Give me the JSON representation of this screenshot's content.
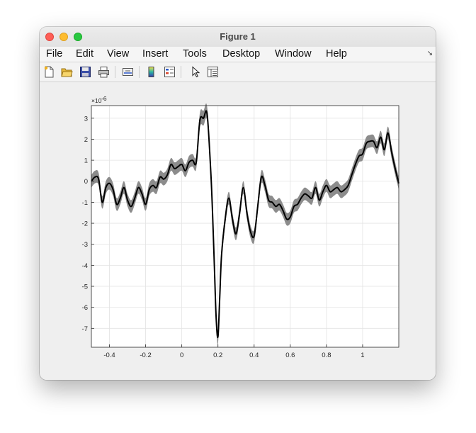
{
  "window": {
    "title": "Figure 1"
  },
  "menu": {
    "items": [
      "File",
      "Edit",
      "View",
      "Insert",
      "Tools",
      "Desktop",
      "Window",
      "Help"
    ]
  },
  "toolbar": {
    "buttons": [
      "new-figure-icon",
      "open-file-icon",
      "save-icon",
      "print-icon",
      "link-plot-icon",
      "insert-colorbar-icon",
      "insert-legend-icon",
      "edit-plot-icon",
      "property-inspector-icon"
    ]
  },
  "chart_data": {
    "type": "line",
    "title": "",
    "xlabel": "",
    "ylabel": "",
    "xlim": [
      -0.5,
      1.2
    ],
    "ylim": [
      -7.9,
      3.6
    ],
    "xticks": [
      -0.4,
      -0.2,
      0,
      0.2,
      0.4,
      0.6,
      0.8,
      1
    ],
    "xtick_labels": [
      "-0.4",
      "-0.2",
      "0",
      "0.2",
      "0.4",
      "0.6",
      "0.8",
      "1"
    ],
    "yticks": [
      3,
      2,
      1,
      0,
      -1,
      -2,
      -3,
      -4,
      -5,
      -6,
      -7
    ],
    "ytick_labels": [
      "3",
      "2",
      "1",
      "0",
      "-1",
      "-2",
      "-3",
      "-4",
      "-5",
      "-6",
      "-7"
    ],
    "y_exponent_label": "×10",
    "y_exponent_power": "-6",
    "grid": true,
    "line_color": "#000000",
    "band_color": "#8c8c8c",
    "series": [
      {
        "x": [
          -0.5,
          -0.48,
          -0.46,
          -0.44,
          -0.42,
          -0.4,
          -0.38,
          -0.36,
          -0.34,
          -0.32,
          -0.3,
          -0.28,
          -0.26,
          -0.24,
          -0.22,
          -0.2,
          -0.18,
          -0.16,
          -0.14,
          -0.12,
          -0.1,
          -0.08,
          -0.06,
          -0.04,
          -0.02,
          0,
          0.02,
          0.04,
          0.06,
          0.08,
          0.1,
          0.12,
          0.14,
          0.16,
          0.17,
          0.18,
          0.19,
          0.2,
          0.21,
          0.22,
          0.24,
          0.26,
          0.28,
          0.3,
          0.32,
          0.34,
          0.36,
          0.38,
          0.4,
          0.42,
          0.44,
          0.46,
          0.48,
          0.5,
          0.52,
          0.54,
          0.56,
          0.58,
          0.6,
          0.62,
          0.64,
          0.66,
          0.68,
          0.7,
          0.72,
          0.74,
          0.76,
          0.78,
          0.8,
          0.82,
          0.84,
          0.86,
          0.88,
          0.9,
          0.92,
          0.94,
          0.96,
          0.98,
          1.0,
          1.02,
          1.04,
          1.06,
          1.08,
          1.1,
          1.12,
          1.14,
          1.16,
          1.18,
          1.2
        ],
        "y": [
          0.0,
          0.2,
          0.1,
          -1.0,
          -0.3,
          -0.1,
          -0.4,
          -1.1,
          -0.8,
          -0.3,
          -0.9,
          -1.2,
          -0.8,
          -0.3,
          -0.6,
          -1.1,
          -0.4,
          -0.2,
          -0.3,
          0.2,
          0.1,
          0.3,
          0.8,
          0.6,
          0.7,
          0.8,
          0.5,
          0.9,
          1.0,
          0.9,
          2.9,
          3.0,
          3.2,
          0.5,
          -1.5,
          -4.0,
          -6.5,
          -7.4,
          -5.5,
          -3.5,
          -1.8,
          -0.8,
          -1.8,
          -2.5,
          -1.5,
          -0.3,
          -1.5,
          -2.4,
          -2.6,
          -1.2,
          0.2,
          -0.2,
          -0.9,
          -1.0,
          -1.2,
          -1.1,
          -1.4,
          -1.8,
          -1.7,
          -1.2,
          -1.1,
          -0.8,
          -0.6,
          -0.7,
          -0.8,
          -0.3,
          -0.9,
          -0.5,
          -0.2,
          -0.5,
          -0.4,
          -0.3,
          -0.5,
          -0.4,
          -0.2,
          0.3,
          0.8,
          1.2,
          1.3,
          1.8,
          1.9,
          1.9,
          1.6,
          2.1,
          1.5,
          2.3,
          1.4,
          0.6,
          -0.1
        ]
      }
    ],
    "band_halfwidth": [
      0.3,
      0.3,
      0.3,
      0.3,
      0.3,
      0.3,
      0.3,
      0.3,
      0.3,
      0.3,
      0.3,
      0.3,
      0.3,
      0.3,
      0.3,
      0.3,
      0.3,
      0.3,
      0.3,
      0.3,
      0.3,
      0.3,
      0.3,
      0.3,
      0.3,
      0.3,
      0.3,
      0.3,
      0.3,
      0.3,
      0.35,
      0.35,
      0.35,
      0.35,
      0.35,
      0.35,
      0.35,
      0.35,
      0.35,
      0.35,
      0.3,
      0.3,
      0.3,
      0.3,
      0.3,
      0.3,
      0.3,
      0.3,
      0.3,
      0.3,
      0.3,
      0.3,
      0.3,
      0.3,
      0.3,
      0.3,
      0.3,
      0.3,
      0.3,
      0.3,
      0.3,
      0.3,
      0.3,
      0.3,
      0.3,
      0.3,
      0.3,
      0.3,
      0.3,
      0.3,
      0.3,
      0.3,
      0.3,
      0.3,
      0.3,
      0.3,
      0.3,
      0.3,
      0.3,
      0.3,
      0.3,
      0.3,
      0.3,
      0.3,
      0.3,
      0.3,
      0.3,
      0.3,
      0.3
    ]
  }
}
